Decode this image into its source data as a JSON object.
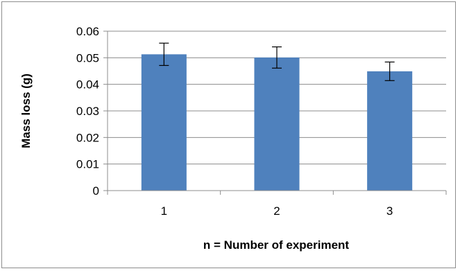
{
  "chart_data": {
    "type": "bar",
    "categories": [
      "1",
      "2",
      "3"
    ],
    "values": [
      0.0513,
      0.0501,
      0.0449
    ],
    "error": [
      0.0042,
      0.004,
      0.0035
    ],
    "title": "",
    "xlabel": "n = Number of experiment",
    "ylabel": "Mass loss (g)",
    "ylim": [
      0,
      0.06
    ],
    "yticks": [
      "0",
      "0.01",
      "0.02",
      "0.03",
      "0.04",
      "0.05",
      "0.06"
    ],
    "grid": true,
    "legend": "none",
    "bar_color": "#4f81bd"
  }
}
